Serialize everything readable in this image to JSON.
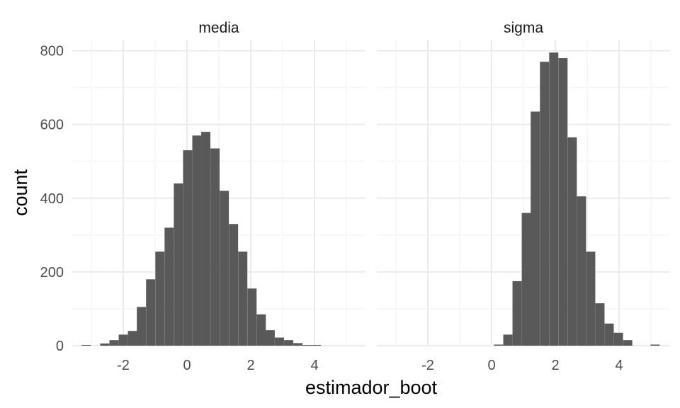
{
  "chart_data": {
    "type": "bar",
    "subtype": "histogram-faceted",
    "xlabel": "estimador_boot",
    "ylabel": "count",
    "xlim": [
      -3.6,
      5.6
    ],
    "ylim": [
      0,
      830
    ],
    "xticks": [
      -2,
      0,
      2,
      4
    ],
    "xtick_labels": [
      "-2",
      "0",
      "2",
      "4"
    ],
    "yticks": [
      0,
      200,
      400,
      600,
      800
    ],
    "ytick_labels": [
      "0",
      "200",
      "400",
      "600",
      "800"
    ],
    "grid": true,
    "legend": "none",
    "bar_color": "#595959",
    "bin_width": 0.287,
    "facets": [
      {
        "name": "media",
        "x": [
          -3.16,
          -2.58,
          -2.29,
          -2.0,
          -1.71,
          -1.43,
          -1.14,
          -0.85,
          -0.56,
          -0.27,
          0.02,
          0.31,
          0.59,
          0.88,
          1.17,
          1.46,
          1.75,
          2.04,
          2.33,
          2.61,
          2.9,
          3.19,
          3.48,
          3.77,
          4.06
        ],
        "values": [
          2,
          6,
          15,
          30,
          40,
          105,
          180,
          255,
          320,
          440,
          530,
          570,
          580,
          535,
          420,
          330,
          255,
          155,
          85,
          42,
          22,
          15,
          7,
          2,
          2
        ]
      },
      {
        "name": "sigma",
        "x": [
          0.22,
          0.51,
          0.8,
          1.09,
          1.37,
          1.66,
          1.95,
          2.24,
          2.53,
          2.82,
          3.11,
          3.4,
          3.69,
          3.98,
          4.27,
          5.13
        ],
        "values": [
          3,
          30,
          175,
          360,
          635,
          770,
          795,
          780,
          565,
          405,
          255,
          115,
          60,
          35,
          15,
          3
        ]
      }
    ]
  }
}
